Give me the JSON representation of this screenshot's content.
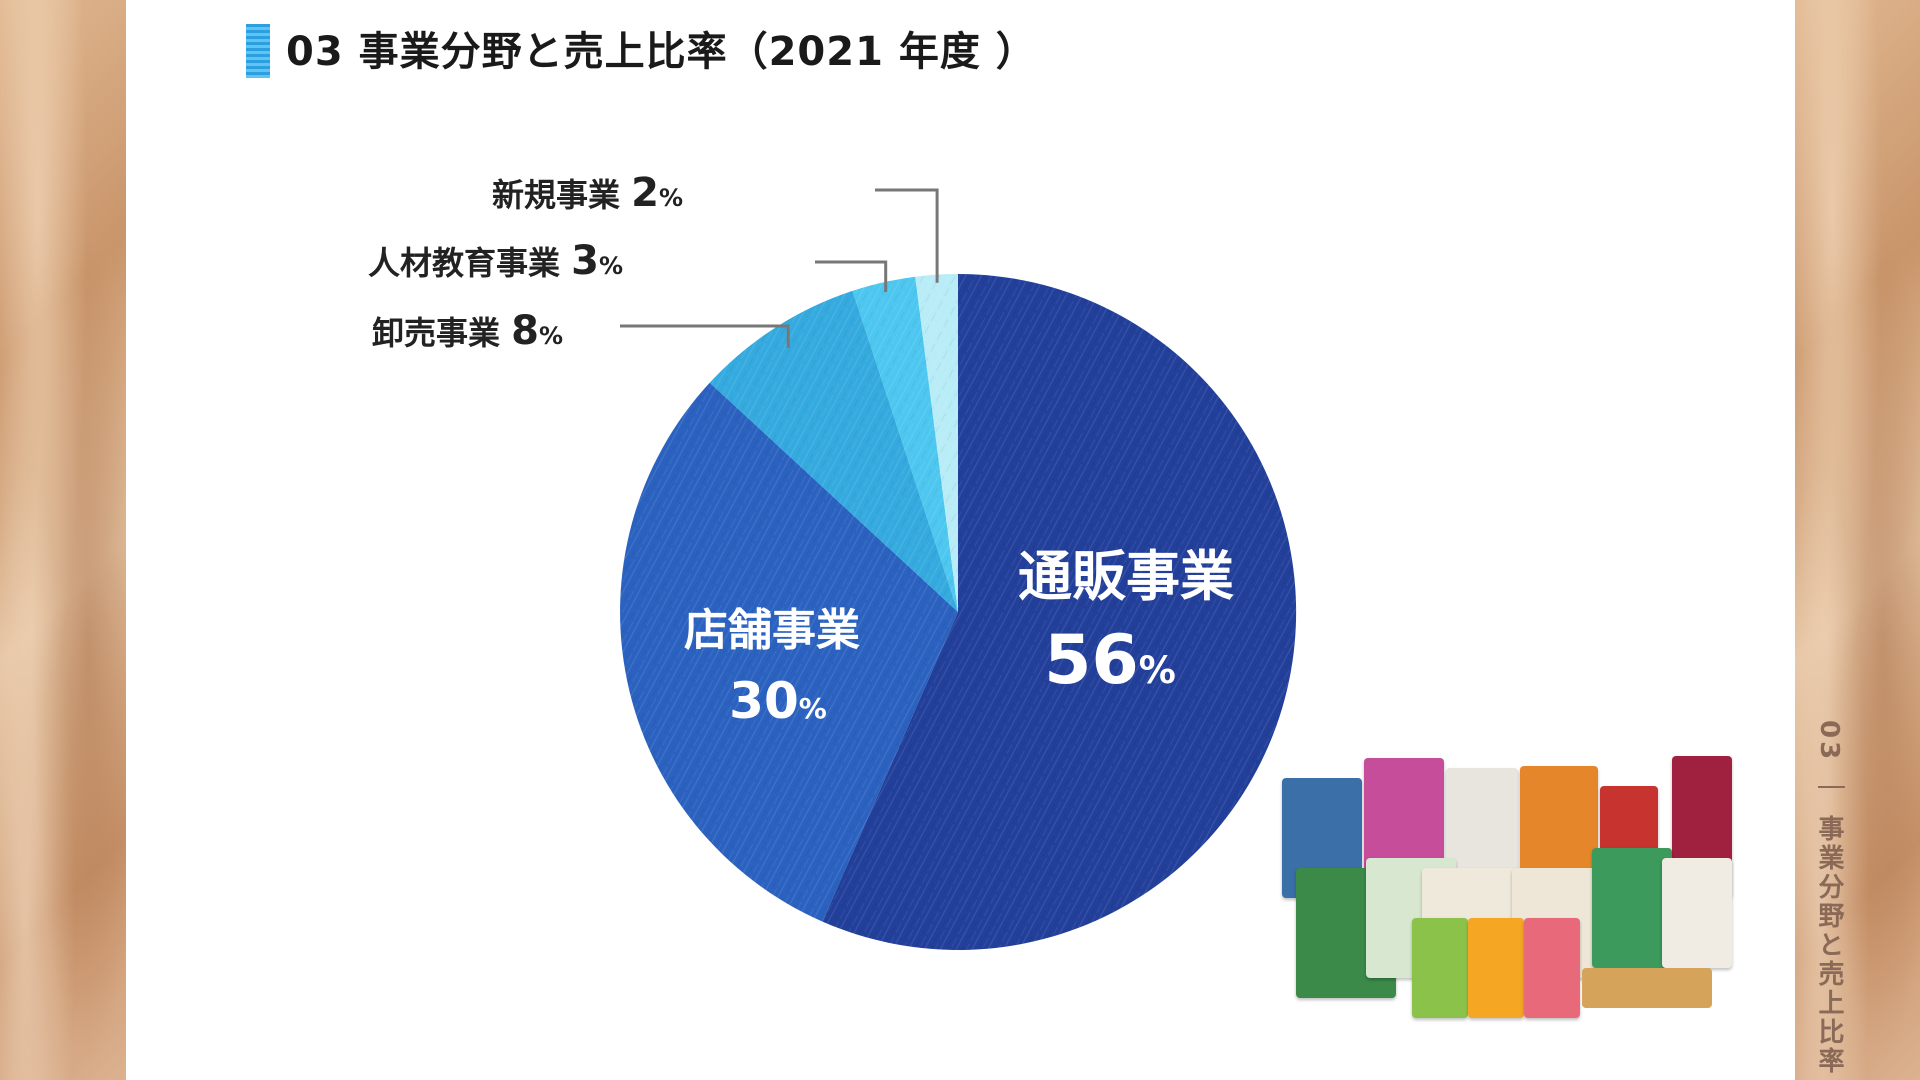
{
  "title": "03 事業分野と売上比率（2021 年度 ）",
  "side_label": "03 ｜ 事業分野と売上比率",
  "chart_data": {
    "type": "pie",
    "title": "事業分野と売上比率（2021 年度 ）",
    "slices": [
      {
        "name": "通販事業",
        "value": 56,
        "color": "#223f9a",
        "label_line1": "通販事業",
        "label_line2": "56",
        "unit": "%"
      },
      {
        "name": "店舗事業",
        "value": 30,
        "color": "#2b62c0",
        "label_line1": "店舗事業",
        "label_line2": "30",
        "unit": "%"
      },
      {
        "name": "卸売事業",
        "value": 8,
        "color": "#35aadf",
        "label_line1": "卸売事業",
        "label_line2": "8",
        "unit": "%"
      },
      {
        "name": "人材教育事業",
        "value": 3,
        "color": "#4dc7f0",
        "label_line1": "人材教育事業",
        "label_line2": "3",
        "unit": "%"
      },
      {
        "name": "新規事業",
        "value": 2,
        "color": "#b8ecf6",
        "label_line1": "新規事業",
        "label_line2": "2",
        "unit": "%"
      }
    ]
  },
  "colors": {
    "label_dark": "#222222",
    "leader_line": "#777777",
    "label_light": "#ffffff"
  },
  "image": {
    "name": "pet-food-products-photo"
  }
}
